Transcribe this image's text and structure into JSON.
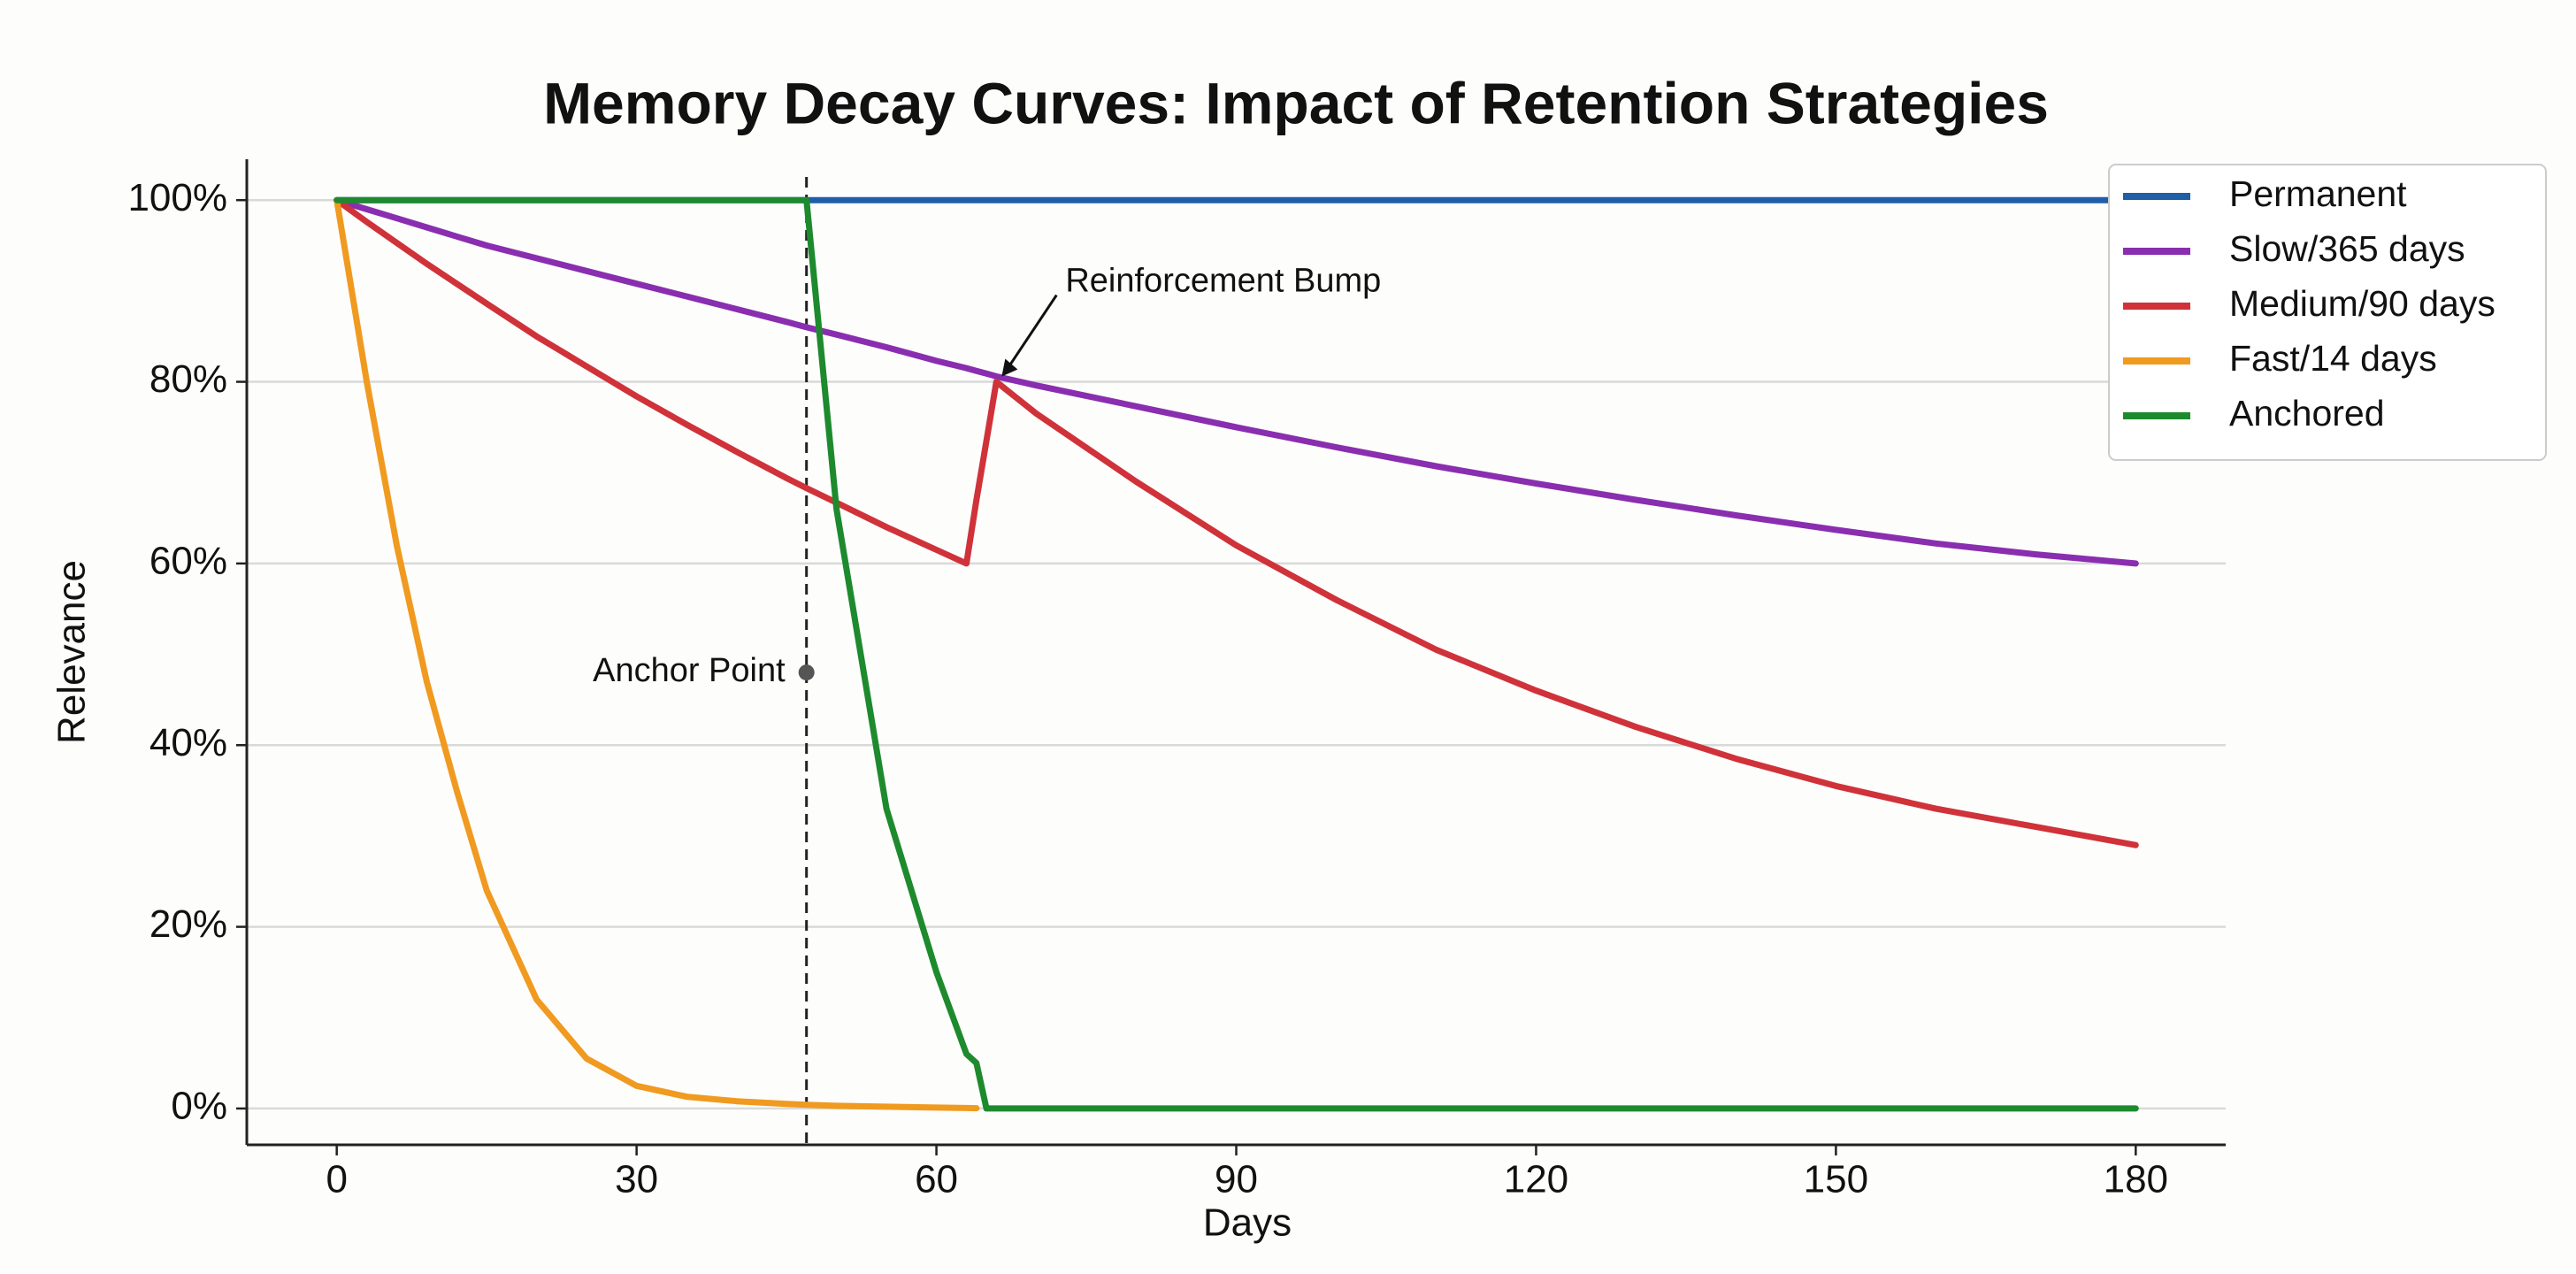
{
  "chart_data": {
    "type": "line",
    "title": "Memory Decay Curves: Impact of Retention Strategies",
    "xlabel": "Days",
    "ylabel": "Relevance",
    "x": [
      0,
      3,
      6,
      9,
      12,
      15,
      20,
      25,
      30,
      35,
      40,
      45,
      47,
      50,
      55,
      60,
      63,
      64,
      65,
      66,
      70,
      80,
      90,
      100,
      110,
      120,
      130,
      140,
      150,
      160,
      170,
      180
    ],
    "series": [
      {
        "name": "Permanent",
        "color": "#1f5fa8",
        "values": [
          100,
          100,
          100,
          100,
          100,
          100,
          100,
          100,
          100,
          100,
          100,
          100,
          100,
          100,
          100,
          100,
          100,
          100,
          100,
          100,
          100,
          100,
          100,
          100,
          100,
          100,
          100,
          100,
          100,
          100,
          100,
          100
        ]
      },
      {
        "name": "Slow/365 days",
        "color": "#8a2eb0",
        "values": [
          100,
          99,
          98,
          97,
          96,
          95,
          93.6,
          92.2,
          90.8,
          89.4,
          88,
          86.6,
          86,
          85.2,
          83.8,
          82.3,
          81.5,
          81.2,
          80.9,
          80.6,
          79.6,
          77.3,
          75,
          72.8,
          70.7,
          68.8,
          67,
          65.3,
          63.7,
          62.2,
          61,
          60
        ]
      },
      {
        "name": "Medium/90 days",
        "color": "#d0323a",
        "values": [
          100,
          97.6,
          95.3,
          93,
          90.8,
          88.6,
          85,
          81.7,
          78.4,
          75.3,
          72.3,
          69.4,
          68.3,
          66.7,
          64,
          61.5,
          60,
          67,
          73.5,
          80,
          76.5,
          69,
          62,
          56,
          50.5,
          46,
          42,
          38.5,
          35.5,
          33,
          31,
          29
        ]
      },
      {
        "name": "Fast/14 days",
        "color": "#f09a20",
        "values": [
          100,
          80,
          62,
          47,
          35,
          24,
          12,
          5.5,
          2.5,
          1.3,
          0.8,
          0.5,
          0.4,
          0.3,
          0.2,
          0.1,
          0.05,
          0.03,
          null,
          null,
          null,
          null,
          null,
          null,
          null,
          null,
          null,
          null,
          null,
          null,
          null,
          null
        ]
      },
      {
        "name": "Anchored",
        "color": "#1e8a2e",
        "values": [
          100,
          100,
          100,
          100,
          100,
          100,
          100,
          100,
          100,
          100,
          100,
          100,
          100,
          66,
          33,
          15,
          6,
          5,
          0,
          0,
          0,
          0,
          0,
          0,
          0,
          0,
          0,
          0,
          0,
          0,
          0,
          0
        ]
      }
    ],
    "annotations": [
      {
        "text": "Anchor Point",
        "x": 47,
        "y": 48
      },
      {
        "text": "Reinforcement Bump",
        "x": 66,
        "y": 80
      }
    ],
    "xlim": [
      -9,
      189
    ],
    "ylim": [
      -4,
      104.5
    ],
    "xticks": [
      0,
      30,
      60,
      90,
      120,
      150,
      180
    ],
    "yticks": [
      {
        "value": 0,
        "label": "0%"
      },
      {
        "value": 20,
        "label": "20%"
      },
      {
        "value": 40,
        "label": "40%"
      },
      {
        "value": 60,
        "label": "60%"
      },
      {
        "value": 80,
        "label": "80%"
      },
      {
        "value": 100,
        "label": "100%"
      }
    ],
    "grid": true,
    "legend": "upper right"
  }
}
